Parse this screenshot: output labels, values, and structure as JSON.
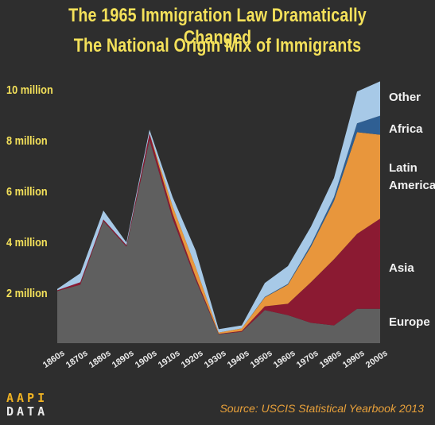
{
  "title_line1": "The 1965 Immigration Law Dramatically Changed",
  "title_line2": "The National Origin Mix of Immigrants",
  "source": "Source: USCIS Statistical Yearbook 2013",
  "logo": {
    "line1": "AAPI",
    "line2": "DATA"
  },
  "chart_data": {
    "type": "area",
    "stacked": true,
    "title": "The 1965 Immigration Law Dramatically Changed The National Origin Mix of Immigrants",
    "xlabel": "",
    "ylabel": "",
    "ylim": [
      0,
      10
    ],
    "y_unit": "million",
    "yticks": [
      {
        "value": 2,
        "label": "2 million"
      },
      {
        "value": 4,
        "label": "4 million"
      },
      {
        "value": 6,
        "label": "6 million"
      },
      {
        "value": 8,
        "label": "8 million"
      },
      {
        "value": 10,
        "label": "10 million"
      }
    ],
    "categories": [
      "1860s",
      "1870s",
      "1880s",
      "1890s",
      "1900s",
      "1910s",
      "1920s",
      "1930s",
      "1940s",
      "1950s",
      "1960s",
      "1970s",
      "1980s",
      "1990s",
      "2000s"
    ],
    "legend_placement": "right, labels beside series ends",
    "grid": false,
    "background": "#2e2e2e",
    "series": [
      {
        "name": "Europe",
        "color": "#5f5f5f",
        "values": [
          2.05,
          2.3,
          4.8,
          3.8,
          8.0,
          4.9,
          2.5,
          0.35,
          0.45,
          1.3,
          1.1,
          0.8,
          0.7,
          1.35,
          1.35
        ]
      },
      {
        "name": "Asia",
        "color": "#8b1a32",
        "values": [
          0.03,
          0.1,
          0.07,
          0.06,
          0.25,
          0.2,
          0.1,
          0.02,
          0.03,
          0.15,
          0.45,
          1.6,
          2.6,
          2.95,
          3.55
        ]
      },
      {
        "name": "Latin America",
        "color": "#e8963c",
        "values": [
          0.0,
          0.0,
          0.0,
          0.0,
          0.0,
          0.3,
          0.4,
          0.05,
          0.1,
          0.35,
          0.75,
          1.4,
          2.3,
          4.0,
          3.3
        ]
      },
      {
        "name": "Africa",
        "color": "#2f5f93",
        "values": [
          0.0,
          0.0,
          0.0,
          0.0,
          0.0,
          0.0,
          0.0,
          0.0,
          0.0,
          0.02,
          0.03,
          0.08,
          0.15,
          0.35,
          0.75
        ]
      },
      {
        "name": "Other",
        "color": "#a7c9e7",
        "values": [
          0.05,
          0.35,
          0.35,
          0.1,
          0.15,
          0.35,
          0.65,
          0.13,
          0.12,
          0.55,
          0.7,
          0.7,
          0.75,
          1.25,
          1.35
        ]
      }
    ],
    "legend": [
      {
        "label": "Other",
        "line2": ""
      },
      {
        "label": "Africa",
        "line2": ""
      },
      {
        "label": "Latin",
        "line2": "America"
      },
      {
        "label": "Asia",
        "line2": ""
      },
      {
        "label": "Europe",
        "line2": ""
      }
    ]
  }
}
